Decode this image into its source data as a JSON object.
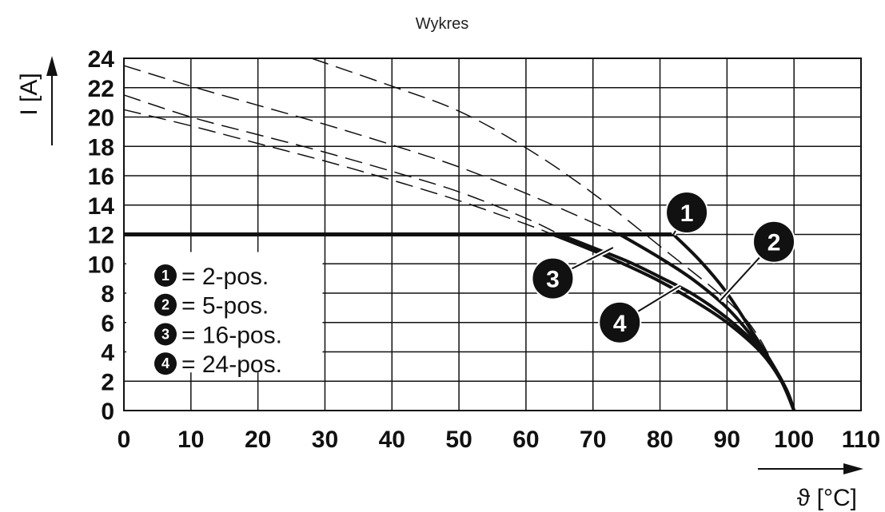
{
  "chart_data": {
    "type": "line",
    "title": "Wykres",
    "xlabel": "ϑ [°C]",
    "ylabel": "I [A]",
    "xlim": [
      0,
      110
    ],
    "ylim": [
      0,
      24
    ],
    "x_ticks": [
      0,
      10,
      20,
      30,
      40,
      50,
      60,
      70,
      80,
      90,
      100,
      110
    ],
    "y_ticks": [
      0,
      2,
      4,
      6,
      8,
      10,
      12,
      14,
      16,
      18,
      20,
      22,
      24
    ],
    "x_tick_labels": [
      "0",
      "10",
      "20",
      "30",
      "40",
      "50",
      "60",
      "70",
      "80",
      "90",
      "100",
      "110"
    ],
    "y_tick_labels": [
      "0",
      "2",
      "4",
      "6",
      "8",
      "10",
      "12",
      "14",
      "16",
      "18",
      "20",
      "22",
      "24"
    ],
    "grid": true,
    "limit_line": {
      "y": 12
    },
    "series": [
      {
        "name": "2-pos.",
        "marker": "1",
        "theoretical": {
          "x": [
            28,
            40,
            50,
            60,
            70,
            80,
            90,
            95,
            100
          ],
          "y": [
            24,
            22.1,
            20.4,
            17.9,
            14.8,
            11.2,
            7.5,
            4.8,
            0
          ]
        },
        "derated": {
          "x": [
            82,
            86,
            90,
            94,
            97,
            99,
            100
          ],
          "y": [
            12,
            10.2,
            8.0,
            5.2,
            3.0,
            1.3,
            0
          ]
        }
      },
      {
        "name": "5-pos.",
        "marker": "2",
        "theoretical": {
          "x": [
            0,
            10,
            20,
            30,
            40,
            50,
            60,
            70,
            74
          ],
          "y": [
            23.5,
            22.1,
            20.8,
            19.5,
            18.1,
            16.6,
            14.8,
            12.8,
            12
          ]
        },
        "derated": {
          "x": [
            74,
            80,
            85,
            90,
            94,
            97,
            99,
            100
          ],
          "y": [
            12,
            10.4,
            8.9,
            7.0,
            4.9,
            2.9,
            1.3,
            0
          ]
        }
      },
      {
        "name": "16-pos.",
        "marker": "3",
        "theoretical": {
          "x": [
            0,
            10,
            20,
            30,
            40,
            50,
            60,
            65
          ],
          "y": [
            21.5,
            20.0,
            18.8,
            17.6,
            16.3,
            14.9,
            13.1,
            12
          ]
        },
        "derated": {
          "x": [
            65,
            70,
            75,
            80,
            85,
            90,
            95,
            98,
            100
          ],
          "y": [
            12,
            11.1,
            10.2,
            9.1,
            7.9,
            6.3,
            4.2,
            2.2,
            0
          ]
        }
      },
      {
        "name": "24-pos.",
        "marker": "4",
        "theoretical": {
          "x": [
            0,
            10,
            20,
            30,
            40,
            50,
            60,
            64
          ],
          "y": [
            20.5,
            19.4,
            18.2,
            17.0,
            15.7,
            14.3,
            12.7,
            12
          ]
        },
        "derated": {
          "x": [
            64,
            70,
            75,
            80,
            85,
            90,
            95,
            98,
            100
          ],
          "y": [
            12,
            10.9,
            9.9,
            8.8,
            7.5,
            6.0,
            4.0,
            2.1,
            0
          ]
        }
      }
    ],
    "legend": [
      {
        "marker": "1",
        "text": "= 2-pos."
      },
      {
        "marker": "2",
        "text": "= 5-pos."
      },
      {
        "marker": "3",
        "text": "= 16-pos."
      },
      {
        "marker": "4",
        "text": "= 24-pos."
      }
    ],
    "callouts": [
      {
        "marker": "1",
        "at": [
          84,
          13.5
        ],
        "target": [
          82,
          12
        ]
      },
      {
        "marker": "2",
        "at": [
          97,
          11.5
        ],
        "target": [
          89,
          7.5
        ]
      },
      {
        "marker": "3",
        "at": [
          64,
          9
        ],
        "target": [
          73,
          11.1
        ]
      },
      {
        "marker": "4",
        "at": [
          74,
          6
        ],
        "target": [
          83,
          8.5
        ]
      }
    ],
    "legend_placement": "bottom-left"
  }
}
